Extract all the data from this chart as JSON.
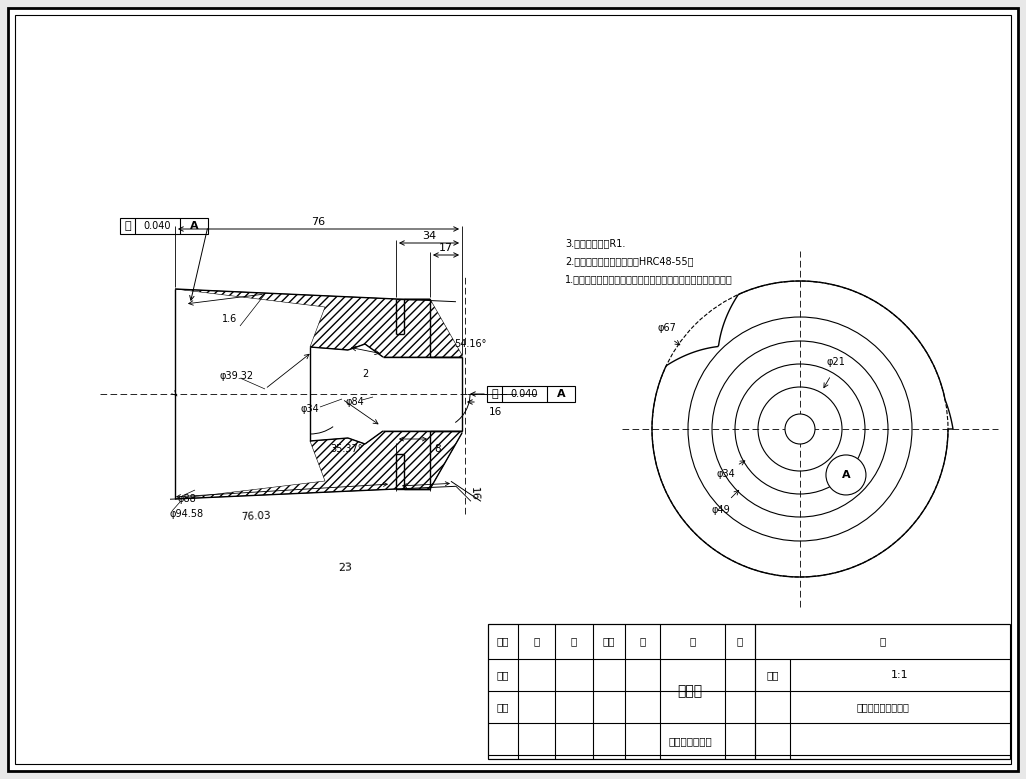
{
  "bg_color": "#e8e8e8",
  "title": "锥齿轮",
  "scale": "1:1",
  "notes": [
    "1.零件加工表面上，不允有划痕、擦伤等损伤零件表面的缺陷。",
    "2.齿调质，淬火，硬度达到HRC48-55。",
    "3.未注圆角半径R1."
  ],
  "table_label_xu": "序号",
  "table_label_ming": "名",
  "table_label_cheng": "称",
  "table_label_shuliang": "数量",
  "table_label_cai": "材",
  "table_label_liao": "料",
  "table_label_bei": "备",
  "table_label_zhu": "注",
  "table_zhitu": "制图",
  "table_shenhe": "审核",
  "table_material": "（材料或质量）",
  "table_drawnum": "（图号或存储代号）",
  "table_bili": "比例",
  "table_scale_val": "1:1",
  "dim_76_03": "76.03",
  "dim_23": "23",
  "dim_16_top": "16",
  "dim_8": "8",
  "dim_35_37": "35.37°",
  "dim_54_16": "54.16°",
  "dim_phi94": "φ94.58",
  "dim_phi88": "φ88",
  "dim_phi39": "φ39.32",
  "dim_phi34_left": "φ34",
  "dim_phi84": "φ84",
  "dim_2": "2",
  "dim_16_right": "16",
  "dim_17": "17",
  "dim_34": "34",
  "dim_76": "76",
  "dim_tol": "0.040",
  "dim_A": "A",
  "dim_16_lower": "1.6",
  "dim_phi67": "φ67",
  "dim_phi_r21": "φ21",
  "dim_phi34_right": "φ34",
  "dim_phi49": "φ49",
  "line_color": "#000000"
}
